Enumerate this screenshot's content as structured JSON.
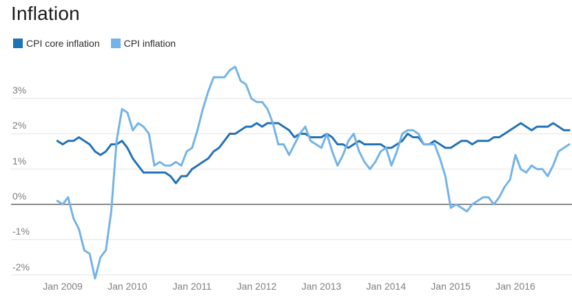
{
  "title": "Inflation",
  "legend": {
    "items": [
      {
        "label": "CPI core inflation",
        "color": "#2171b5"
      },
      {
        "label": "CPI inflation",
        "color": "#73b3e7"
      }
    ]
  },
  "colors": {
    "background": "#ffffff",
    "title": "#1a1a1a",
    "legend_label": "#2d2d2d",
    "axis_label": "#7e7e7e",
    "grid": "#e2e2e2",
    "zero_line": "#111111"
  },
  "chart_data": {
    "type": "line",
    "title": "Inflation",
    "x_unit": "month",
    "x_range": [
      "Dec 2008",
      "Nov 2016"
    ],
    "ylim": [
      -2.6,
      3.9
    ],
    "grid": "horizontal-only",
    "legend_position": "top-left",
    "y_ticks": [
      {
        "value": 3,
        "label": "3%"
      },
      {
        "value": 2,
        "label": "2%"
      },
      {
        "value": 1,
        "label": "1%"
      },
      {
        "value": 0,
        "label": "0%"
      },
      {
        "value": -1,
        "label": "-1%"
      },
      {
        "value": -2,
        "label": "-2%"
      }
    ],
    "x_ticks": [
      {
        "month_index": 1,
        "label": "Jan 2009"
      },
      {
        "month_index": 13,
        "label": "Jan 2010"
      },
      {
        "month_index": 25,
        "label": "Jan 2011"
      },
      {
        "month_index": 37,
        "label": "Jan 2012"
      },
      {
        "month_index": 49,
        "label": "Jan 2013"
      },
      {
        "month_index": 61,
        "label": "Jan 2014"
      },
      {
        "month_index": 73,
        "label": "Jan 2015"
      },
      {
        "month_index": 85,
        "label": "Jan 2016"
      }
    ],
    "series": [
      {
        "name": "CPI core inflation",
        "color": "#2171b5",
        "values": [
          1.8,
          1.7,
          1.8,
          1.8,
          1.9,
          1.8,
          1.7,
          1.5,
          1.4,
          1.5,
          1.7,
          1.7,
          1.8,
          1.6,
          1.3,
          1.1,
          0.9,
          0.9,
          0.9,
          0.9,
          0.9,
          0.8,
          0.6,
          0.8,
          0.8,
          1.0,
          1.1,
          1.2,
          1.3,
          1.5,
          1.6,
          1.8,
          2.0,
          2.0,
          2.1,
          2.2,
          2.2,
          2.3,
          2.2,
          2.3,
          2.3,
          2.3,
          2.2,
          2.1,
          1.9,
          2.0,
          2.0,
          1.9,
          1.9,
          1.9,
          2.0,
          1.9,
          1.7,
          1.7,
          1.6,
          1.7,
          1.8,
          1.7,
          1.7,
          1.7,
          1.7,
          1.6,
          1.6,
          1.7,
          1.8,
          2.0,
          1.9,
          1.9,
          1.7,
          1.7,
          1.8,
          1.7,
          1.6,
          1.6,
          1.7,
          1.8,
          1.8,
          1.7,
          1.8,
          1.8,
          1.8,
          1.9,
          1.9,
          2.0,
          2.1,
          2.2,
          2.3,
          2.2,
          2.1,
          2.2,
          2.2,
          2.2,
          2.3,
          2.2,
          2.1,
          2.1
        ]
      },
      {
        "name": "CPI inflation",
        "color": "#73b3e7",
        "values": [
          0.1,
          0.0,
          0.2,
          -0.4,
          -0.7,
          -1.3,
          -1.4,
          -2.1,
          -1.5,
          -1.3,
          -0.2,
          1.8,
          2.7,
          2.6,
          2.1,
          2.3,
          2.2,
          2.0,
          1.1,
          1.2,
          1.1,
          1.1,
          1.2,
          1.1,
          1.5,
          1.6,
          2.1,
          2.7,
          3.2,
          3.6,
          3.6,
          3.6,
          3.8,
          3.9,
          3.5,
          3.4,
          3.0,
          2.9,
          2.9,
          2.7,
          2.3,
          1.7,
          1.7,
          1.4,
          1.7,
          2.0,
          2.2,
          1.8,
          1.7,
          1.6,
          2.0,
          1.5,
          1.1,
          1.4,
          1.8,
          2.0,
          1.5,
          1.2,
          1.0,
          1.2,
          1.5,
          1.6,
          1.1,
          1.5,
          2.0,
          2.1,
          2.1,
          2.0,
          1.7,
          1.7,
          1.7,
          1.3,
          0.8,
          -0.1,
          0.0,
          -0.1,
          -0.2,
          0.0,
          0.1,
          0.2,
          0.2,
          0.0,
          0.2,
          0.5,
          0.7,
          1.4,
          1.0,
          0.9,
          1.1,
          1.0,
          1.0,
          0.8,
          1.1,
          1.5,
          1.6,
          1.7
        ]
      }
    ]
  }
}
